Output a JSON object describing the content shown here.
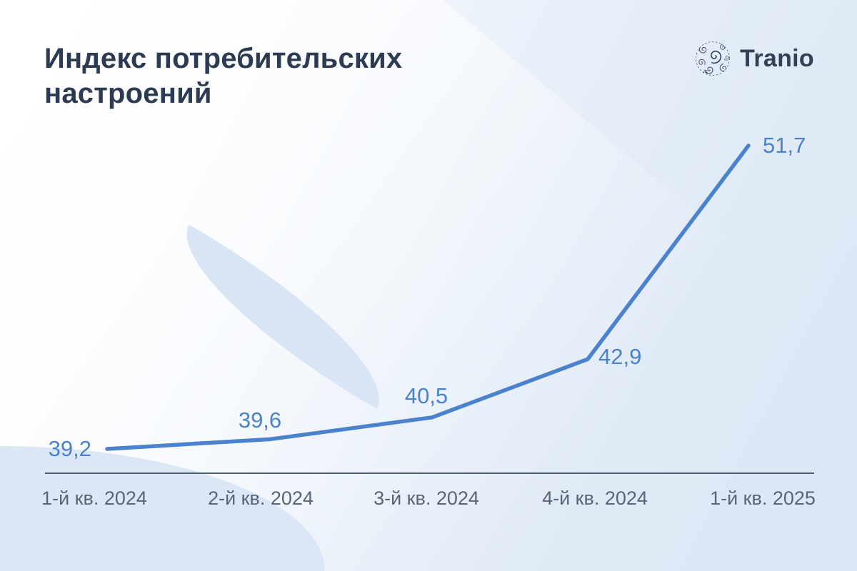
{
  "header": {
    "title": "Индекс потребительских настроений",
    "brand": {
      "name": "Tranio"
    }
  },
  "chart_data": {
    "type": "line",
    "title": "Индекс потребительских настроений",
    "categories": [
      "1-й кв. 2024",
      "2-й кв. 2024",
      "3-й кв. 2024",
      "4-й кв. 2024",
      "1-й кв. 2025"
    ],
    "values": [
      39.2,
      39.6,
      40.5,
      42.9,
      51.7
    ],
    "value_labels": [
      "39,2",
      "39,6",
      "40,5",
      "42,9",
      "51,7"
    ],
    "xlabel": "",
    "ylabel": "",
    "ylim": [
      38.2,
      53.5
    ],
    "grid": false,
    "legend": "none",
    "colors": {
      "line": "#4a82cd",
      "value_label": "#4a82cd",
      "axis": "#4e5c72",
      "tick_label": "#5a6575",
      "title": "#2d3b52",
      "brand": "#333f54",
      "background_light": "#ffffff",
      "background_blue": "#d9e6f5"
    }
  }
}
